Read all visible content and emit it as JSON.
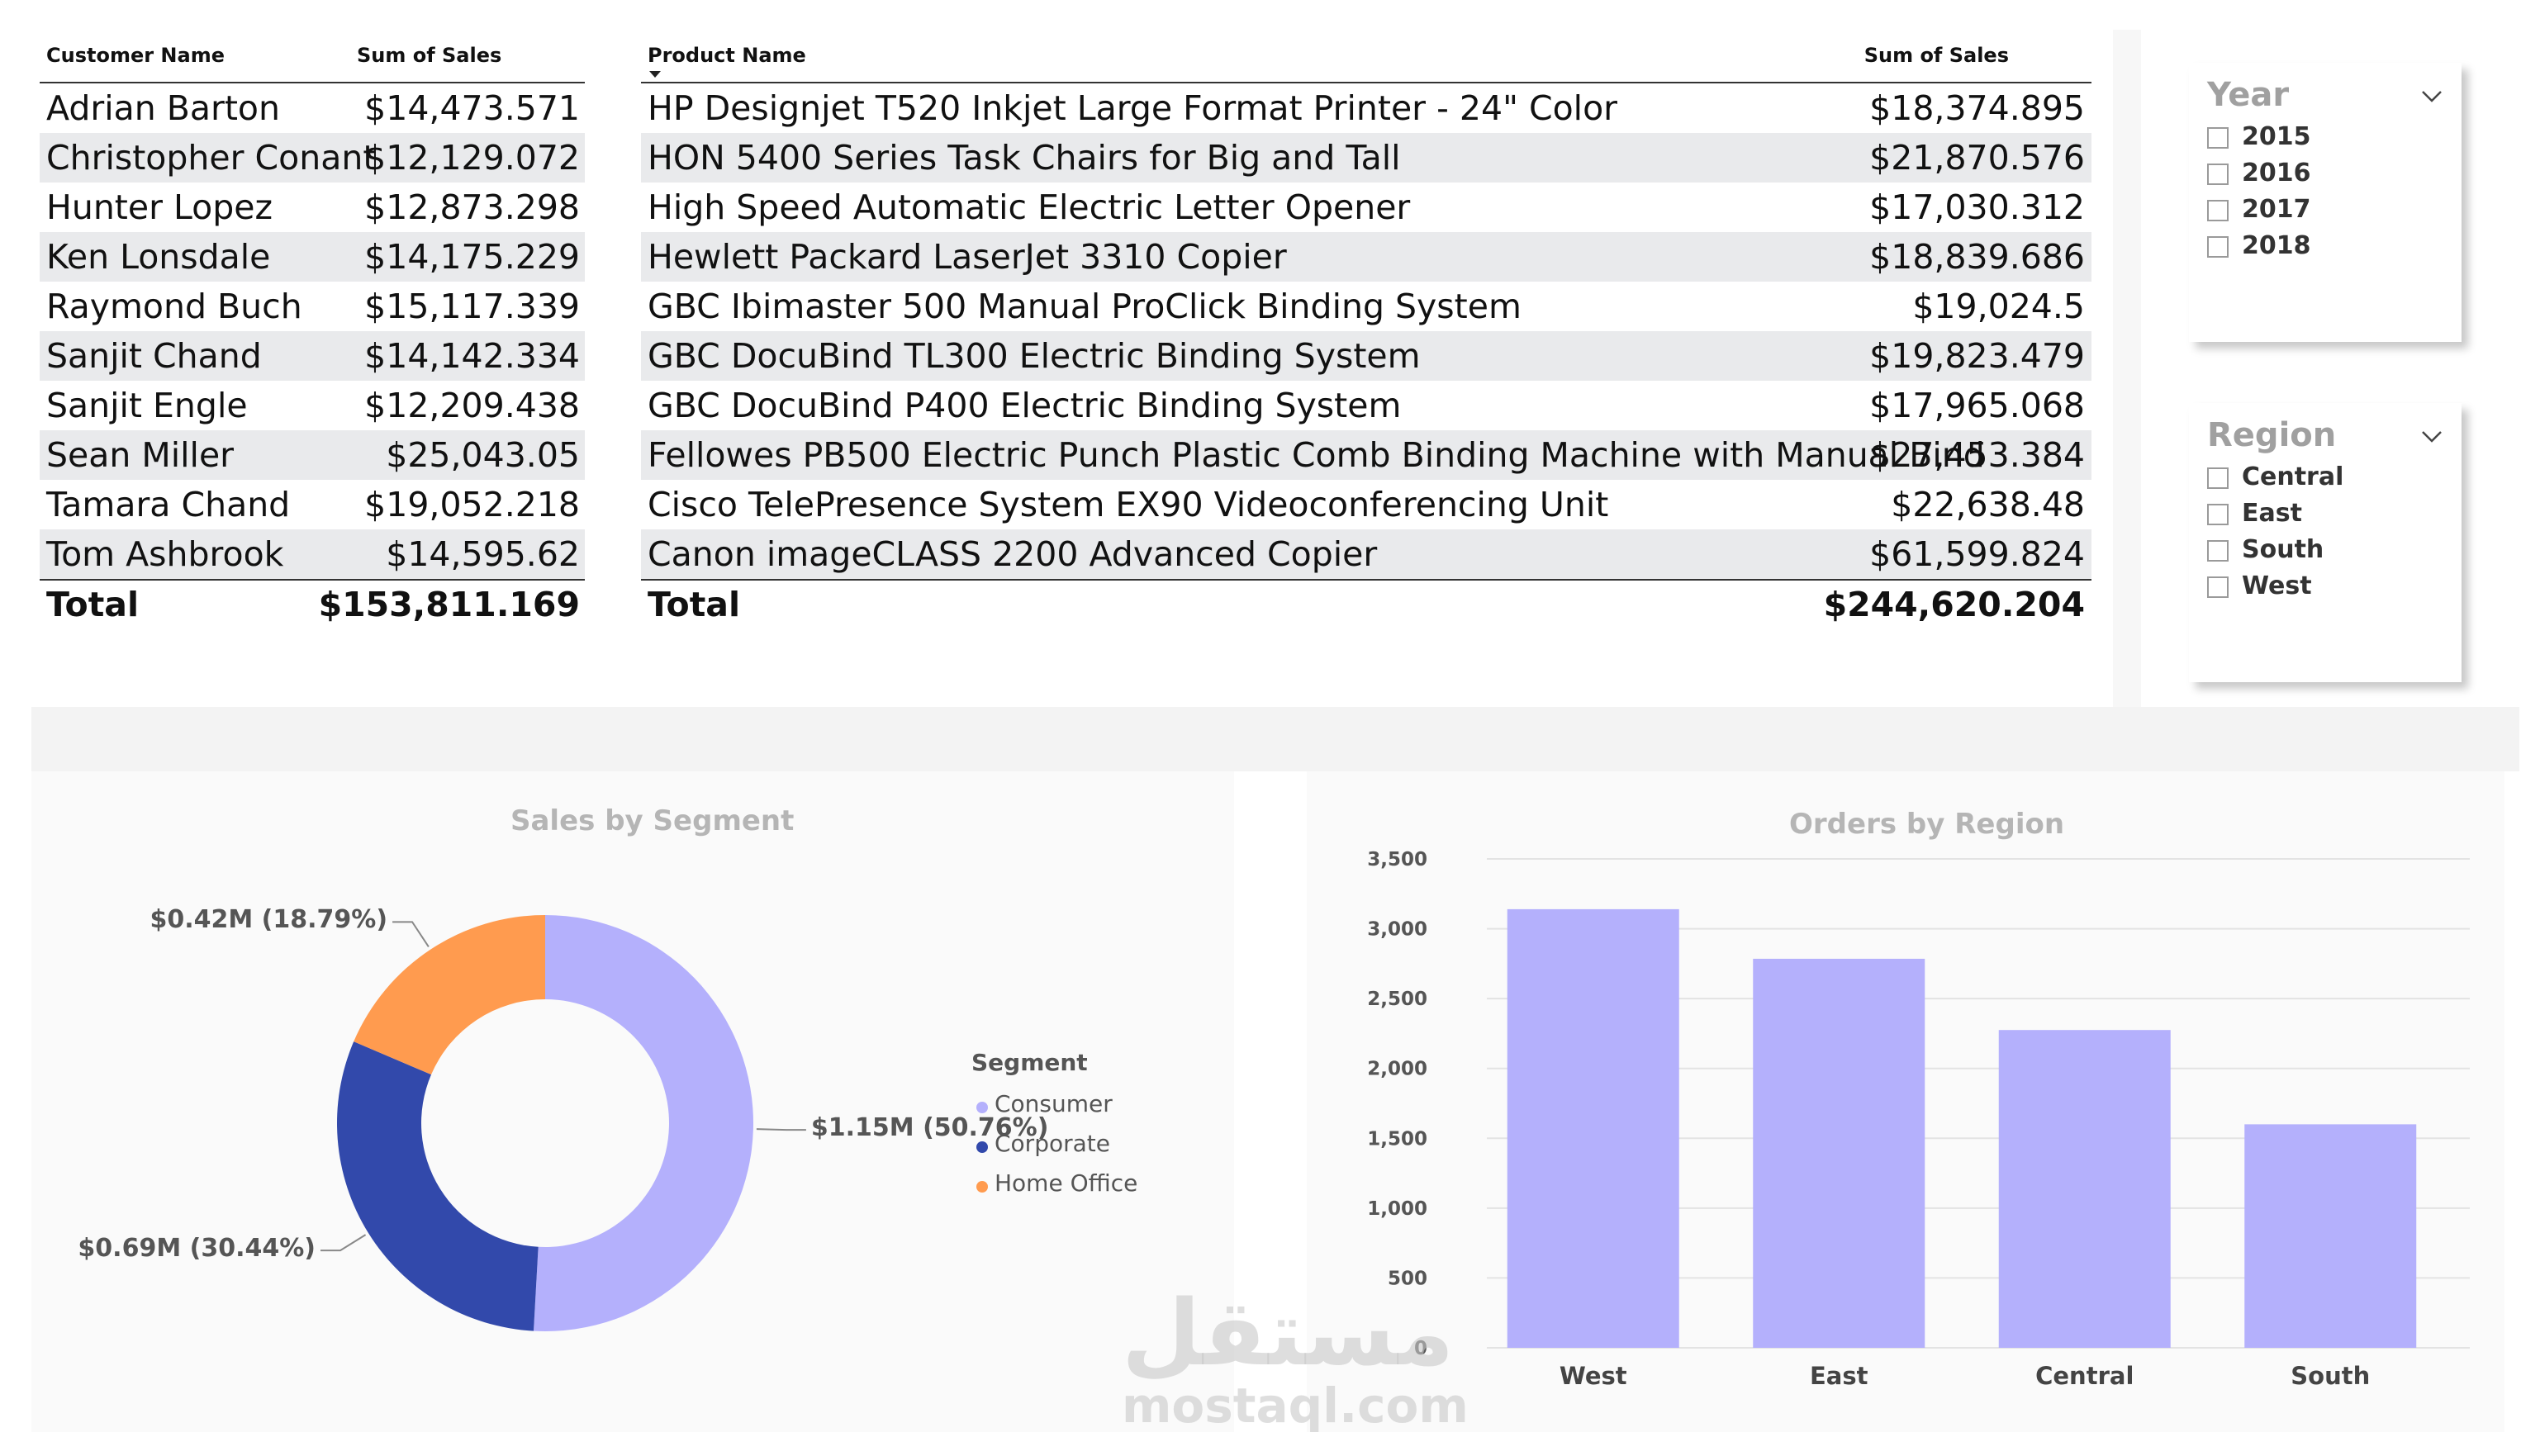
{
  "customer_table": {
    "headers": [
      "Customer Name",
      "Sum of Sales"
    ],
    "rows": [
      [
        "Adrian Barton",
        "$14,473.571"
      ],
      [
        "Christopher Conant",
        "$12,129.072"
      ],
      [
        "Hunter Lopez",
        "$12,873.298"
      ],
      [
        "Ken Lonsdale",
        "$14,175.229"
      ],
      [
        "Raymond Buch",
        "$15,117.339"
      ],
      [
        "Sanjit Chand",
        "$14,142.334"
      ],
      [
        "Sanjit Engle",
        "$12,209.438"
      ],
      [
        "Sean Miller",
        "$25,043.05"
      ],
      [
        "Tamara Chand",
        "$19,052.218"
      ],
      [
        "Tom Ashbrook",
        "$14,595.62"
      ]
    ],
    "total": [
      "Total",
      "$153,811.169"
    ]
  },
  "product_table": {
    "headers": [
      "Product Name",
      "Sum of Sales"
    ],
    "sort_icon": "sort-descending-icon",
    "rows": [
      [
        "HP Designjet T520 Inkjet Large Format Printer - 24\" Color",
        "$18,374.895"
      ],
      [
        "HON 5400 Series Task Chairs for Big and Tall",
        "$21,870.576"
      ],
      [
        "High Speed Automatic Electric Letter Opener",
        "$17,030.312"
      ],
      [
        "Hewlett Packard LaserJet 3310 Copier",
        "$18,839.686"
      ],
      [
        "GBC Ibimaster 500 Manual ProClick Binding System",
        "$19,024.5"
      ],
      [
        "GBC DocuBind TL300 Electric Binding System",
        "$19,823.479"
      ],
      [
        "GBC DocuBind P400 Electric Binding System",
        "$17,965.068"
      ],
      [
        "Fellowes PB500 Electric Punch Plastic Comb Binding Machine with Manual Bind",
        "$27,453.384"
      ],
      [
        "Cisco TelePresence System EX90 Videoconferencing Unit",
        "$22,638.48"
      ],
      [
        "Canon imageCLASS 2200 Advanced Copier",
        "$61,599.824"
      ]
    ],
    "total": [
      "Total",
      "$244,620.204"
    ]
  },
  "year_slicer": {
    "title": "Year",
    "icon": "chevron-down-icon",
    "options": [
      "2015",
      "2016",
      "2017",
      "2018"
    ]
  },
  "region_slicer": {
    "title": "Region",
    "icon": "chevron-down-icon",
    "options": [
      "Central",
      "East",
      "South",
      "West"
    ]
  },
  "chart_data": [
    {
      "type": "pie",
      "title": "Sales by Segment",
      "legend_title": "Segment",
      "legend_position": "right",
      "categories": [
        "Consumer",
        "Corporate",
        "Home Office"
      ],
      "values": [
        1.15,
        0.69,
        0.42
      ],
      "percentages": [
        50.76,
        30.44,
        18.79
      ],
      "labels": [
        "$1.15M (50.76%)",
        "$0.69M (30.44%)",
        "$0.42M (18.79%)"
      ],
      "colors": [
        "#b4b0fc",
        "#3249ab",
        "#ff9b4f"
      ]
    },
    {
      "type": "bar",
      "title": "Orders by Region",
      "categories": [
        "West",
        "East",
        "Central",
        "South"
      ],
      "values": [
        3140,
        2785,
        2275,
        1600
      ],
      "ylim": [
        0,
        3500
      ],
      "yticks": [
        "0",
        "500",
        "1,000",
        "1,500",
        "2,000",
        "2,500",
        "3,000",
        "3,500"
      ],
      "grid": true,
      "color": "#b4b0fc"
    }
  ],
  "watermark": {
    "arabic": "مستقل",
    "latin": "mostaql.com"
  }
}
